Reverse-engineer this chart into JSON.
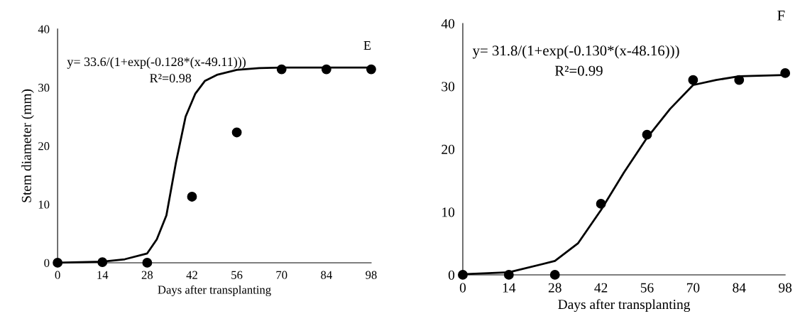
{
  "chart_data": [
    {
      "type": "scatter",
      "xlabel": "Days after transplanting",
      "ylabel": "Stem diameter (mm)",
      "xlim": [
        0,
        98
      ],
      "xticks": [
        0,
        14,
        28,
        42,
        56,
        70,
        84,
        98
      ],
      "ylim": [
        0,
        40
      ],
      "yticks": [
        0,
        10,
        20,
        30,
        40
      ],
      "grid": false,
      "annotations": [
        "y= 33.6/(1+exp(-0.128*(x-49.11)))",
        "R²=0.98",
        "E"
      ],
      "series": [
        {
          "marker": "circle",
          "color": "#000000",
          "x": [
            0,
            14,
            28,
            42,
            56,
            70,
            84,
            98
          ],
          "values": [
            0,
            0.1,
            0,
            11.3,
            22.3,
            33.1,
            33.1,
            33.1
          ]
        },
        {
          "type": "line",
          "marker": "none",
          "line_style": "solid",
          "color": "#000000",
          "x": [
            0,
            14,
            21,
            28,
            31,
            34,
            37,
            40,
            43,
            46,
            50,
            56,
            63,
            70,
            98
          ],
          "values": [
            0,
            0.2,
            0.6,
            1.6,
            4,
            8.1,
            17.2,
            25,
            28.9,
            31.1,
            32.2,
            33,
            33.3,
            33.4,
            33.4
          ]
        }
      ]
    },
    {
      "type": "scatter",
      "xlabel": "Days after transplanting",
      "xlim": [
        0,
        98
      ],
      "xticks": [
        0,
        14,
        28,
        42,
        56,
        70,
        84,
        98
      ],
      "ylim": [
        0,
        40
      ],
      "yticks": [
        0,
        10,
        20,
        30,
        40
      ],
      "grid": false,
      "annotations": [
        "y= 31.8/(1+exp(-0.130*(x-48.16)))",
        "R²=0.99",
        "F"
      ],
      "series": [
        {
          "marker": "circle",
          "color": "#000000",
          "x": [
            0,
            14,
            28,
            42,
            56,
            70,
            84,
            98
          ],
          "values": [
            0,
            0,
            0,
            11.3,
            22.3,
            31,
            31,
            32.1
          ]
        },
        {
          "type": "line",
          "marker": "none",
          "line_style": "solid",
          "color": "#000000",
          "x": [
            0,
            14,
            28,
            35,
            42,
            49,
            56,
            63,
            70,
            77,
            84,
            98
          ],
          "values": [
            0.1,
            0.4,
            2.2,
            5,
            10.3,
            16.3,
            21.8,
            26.4,
            30.2,
            31,
            31.6,
            31.8
          ]
        }
      ]
    }
  ]
}
